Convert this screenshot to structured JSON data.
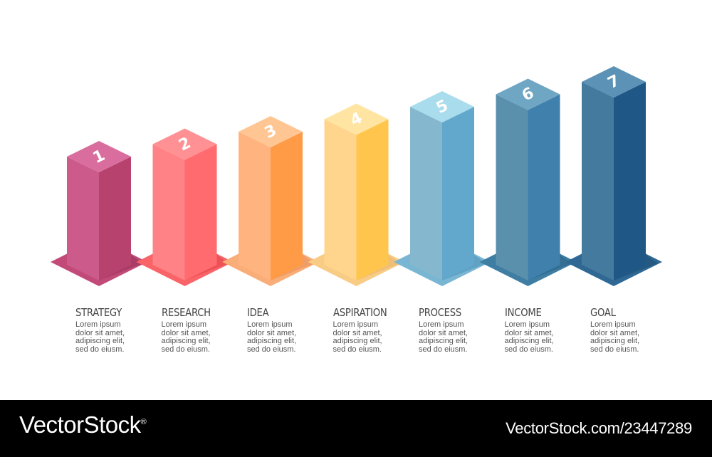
{
  "steps": [
    {
      "number": "1",
      "title": "STRATEGY",
      "lines": [
        "Lorem ipsum",
        "dolor sit amet,",
        "adipiscing elit,",
        "sed do eiusm."
      ],
      "height": 1,
      "colors": {
        "top": "#d96e9e",
        "left": "#cc5b8c",
        "right": "#b8426e",
        "base": "#c24a78",
        "shadow": "#96335a"
      }
    },
    {
      "number": "2",
      "title": "RESEARCH",
      "lines": [
        "Lorem ipsum",
        "dolor sit amet,",
        "adipiscing elit,",
        "sed do eiusm."
      ],
      "height": 2,
      "colors": {
        "top": "#ff9194",
        "left": "#ff8286",
        "right": "#ff6b6e",
        "base": "#f96469",
        "shadow": "#e2464c"
      }
    },
    {
      "number": "3",
      "title": "IDEA",
      "lines": [
        "Lorem ipsum",
        "dolor sit amet,",
        "adipiscing elit,",
        "sed do eiusm."
      ],
      "height": 3,
      "colors": {
        "top": "#ffc693",
        "left": "#ffb47f",
        "right": "#ff9a47",
        "base": "#f9ad78",
        "shadow": "#e8905a"
      }
    },
    {
      "number": "4",
      "title": "ASPIRATION",
      "lines": [
        "Lorem ipsum",
        "dolor sit amet,",
        "adipiscing elit,",
        "sed do eiusm."
      ],
      "height": 4,
      "colors": {
        "top": "#ffe4a2",
        "left": "#ffd58d",
        "right": "#ffc54d",
        "base": "#f9cc86",
        "shadow": "#eab56c"
      }
    },
    {
      "number": "5",
      "title": "PROCESS",
      "lines": [
        "Lorem ipsum",
        "dolor sit amet,",
        "adipiscing elit,",
        "sed do eiusm."
      ],
      "height": 5,
      "colors": {
        "top": "#a9dcec",
        "left": "#85b7cf",
        "right": "#62a8cd",
        "base": "#79b6d4",
        "shadow": "#4d92b5"
      }
    },
    {
      "number": "6",
      "title": "INCOME",
      "lines": [
        "Lorem ipsum",
        "dolor sit amet,",
        "adipiscing elit,",
        "sed do eiusm."
      ],
      "height": 6,
      "colors": {
        "top": "#6fa6c4",
        "left": "#5b90ad",
        "right": "#3f80ac",
        "base": "#3f7ea3",
        "shadow": "#2c6286"
      }
    },
    {
      "number": "7",
      "title": "GOAL",
      "lines": [
        "Lorem ipsum",
        "dolor sit amet,",
        "adipiscing elit,",
        "sed do eiusm."
      ],
      "height": 7,
      "colors": {
        "top": "#5b92b6",
        "left": "#457a9f",
        "right": "#1f5886",
        "base": "#2f6894",
        "shadow": "#1c4c72"
      }
    }
  ],
  "footer": {
    "brand": "VectorStock",
    "brand_mark": "®",
    "url": "VectorStock.com/23447289"
  }
}
